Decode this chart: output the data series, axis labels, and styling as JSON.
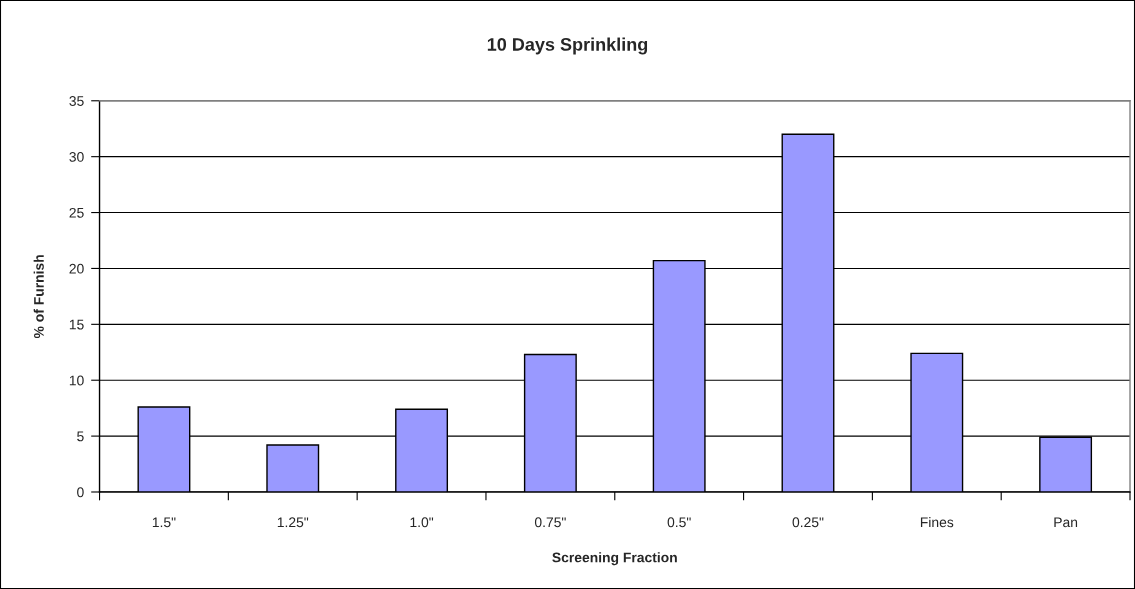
{
  "chart_data": {
    "type": "bar",
    "title": "10 Days Sprinkling",
    "xlabel": "Screening Fraction",
    "ylabel": "% of Furnish",
    "categories": [
      "1.5\"",
      "1.25\"",
      "1.0\"",
      "0.75\"",
      "0.5\"",
      "0.25\"",
      "Fines",
      "Pan"
    ],
    "values": [
      7.6,
      4.2,
      7.4,
      12.3,
      20.7,
      32.0,
      12.4,
      4.9
    ],
    "color": "#9999ff",
    "ylim": [
      0,
      35
    ],
    "yticks": [
      0,
      5,
      10,
      15,
      20,
      25,
      30,
      35
    ],
    "grid": "y"
  }
}
